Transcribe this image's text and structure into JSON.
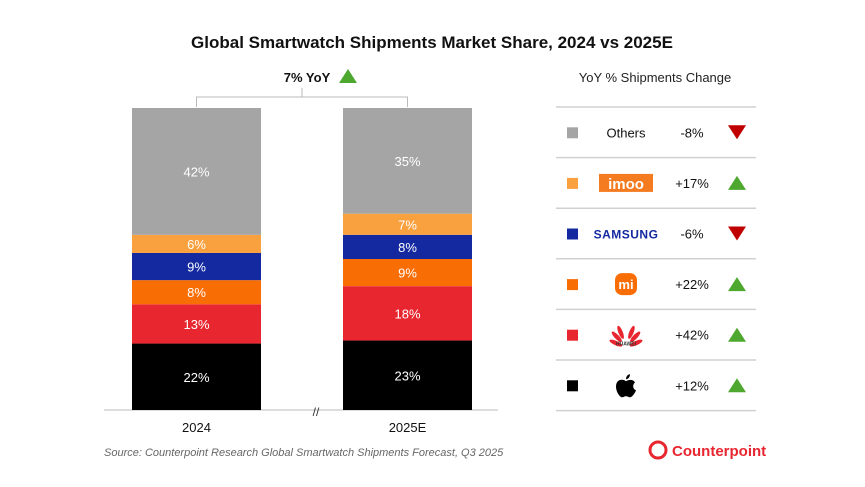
{
  "chart_data": {
    "type": "bar",
    "stacked": true,
    "title": "Global Smartwatch Shipments Market Share, 2024 vs 2025E",
    "categories": [
      "2024",
      "2025E"
    ],
    "series": [
      {
        "name": "Apple",
        "color": "#000000",
        "values": [
          22,
          23
        ]
      },
      {
        "name": "Huawei",
        "color": "#e8262f",
        "values": [
          13,
          18
        ]
      },
      {
        "name": "Xiaomi",
        "color": "#f96d05",
        "values": [
          8,
          9
        ]
      },
      {
        "name": "Samsung",
        "color": "#1428a0",
        "values": [
          9,
          8
        ]
      },
      {
        "name": "imoo",
        "color": "#f9a03f",
        "values": [
          6,
          7
        ]
      },
      {
        "name": "Others",
        "color": "#a5a5a5",
        "values": [
          42,
          35
        ]
      }
    ],
    "value_suffix": "%",
    "ylim": [
      0,
      100
    ],
    "axis_break": "//",
    "total_growth": {
      "label": "7% YoY",
      "direction": "up"
    },
    "yoy_table": {
      "title": "YoY % Shipments Change",
      "rows": [
        {
          "brand": "Others",
          "change": "-8%",
          "direction": "down",
          "color": "#a5a5a5"
        },
        {
          "brand": "imoo",
          "change": "+17%",
          "direction": "up",
          "color": "#f9a03f"
        },
        {
          "brand": "SAMSUNG",
          "change": "-6%",
          "direction": "down",
          "color": "#1428a0"
        },
        {
          "brand": "mi",
          "change": "+22%",
          "direction": "up",
          "color": "#f96d05"
        },
        {
          "brand": "HUAWEI",
          "change": "+42%",
          "direction": "up",
          "color": "#e8262f"
        },
        {
          "brand": "Apple",
          "change": "+12%",
          "direction": "up",
          "color": "#000000"
        }
      ]
    },
    "source": "Source: Counterpoint Research Global Smartwatch Shipments Forecast, Q3 2025",
    "logo": "Counterpoint",
    "colors": {
      "up": "#4ea72e",
      "down": "#c00000"
    }
  }
}
